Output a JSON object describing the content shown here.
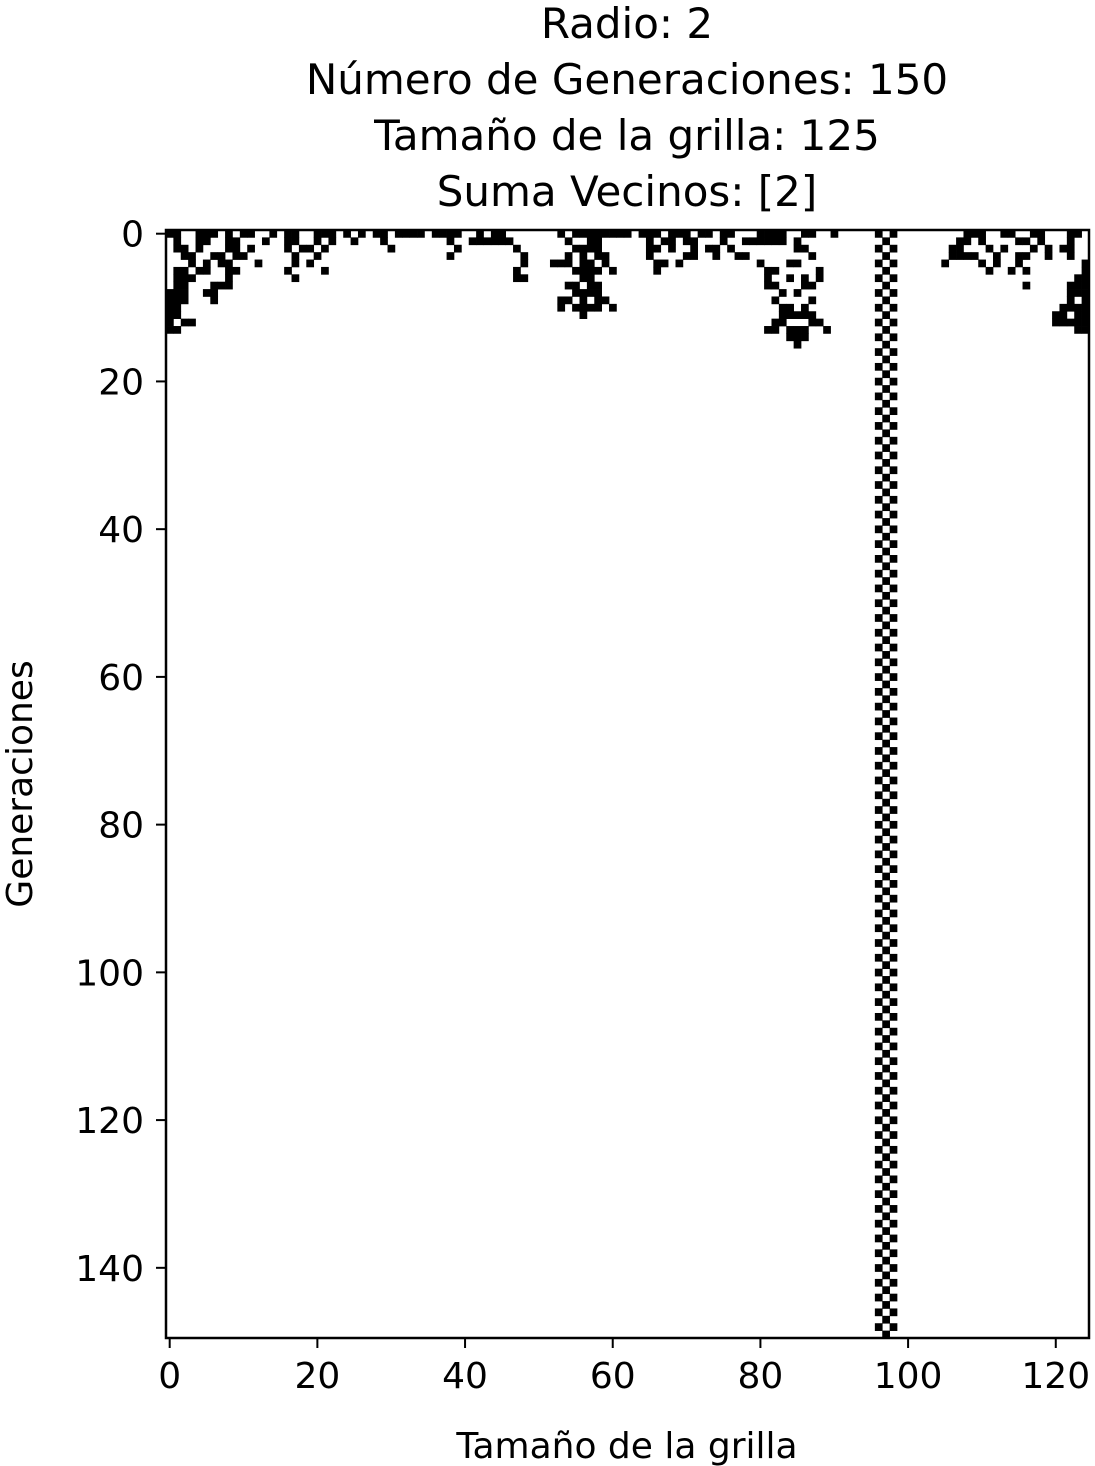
{
  "chart_data": {
    "type": "heatmap",
    "title_lines": [
      "Radio: 2",
      "Número de Generaciones: 150",
      "Tamaño de la grilla: 125",
      "Suma Vecinos: [2]"
    ],
    "xlabel": "Tamaño de la grilla",
    "ylabel": "Generaciones",
    "xlim": [
      -0.5,
      124.5
    ],
    "ylim": [
      149.5,
      -0.5
    ],
    "xticks": [
      0,
      20,
      40,
      60,
      80,
      100,
      120
    ],
    "yticks": [
      0,
      20,
      40,
      60,
      80,
      100,
      120,
      140
    ],
    "colormap": "binary",
    "colors": {
      "alive": "#000000",
      "dead": "#ffffff"
    },
    "grid": false,
    "grid_size": 125,
    "generations": 150,
    "notes_visible": "Top rows show transient chaotic pattern dying out by ~generation 15; a persistent checkerboard column band spans x≈96–98 for all generations.",
    "active_cells": [
      [
        0,
        0
      ],
      [
        0,
        1
      ],
      [
        0,
        4
      ],
      [
        0,
        5
      ],
      [
        0,
        6
      ],
      [
        0,
        8
      ],
      [
        0,
        10
      ],
      [
        0,
        11
      ],
      [
        0,
        14
      ],
      [
        0,
        16
      ],
      [
        0,
        17
      ],
      [
        0,
        20
      ],
      [
        0,
        21
      ],
      [
        0,
        22
      ],
      [
        0,
        24
      ],
      [
        0,
        26
      ],
      [
        0,
        28
      ],
      [
        0,
        29
      ],
      [
        0,
        31
      ],
      [
        0,
        32
      ],
      [
        0,
        33
      ],
      [
        0,
        34
      ],
      [
        0,
        36
      ],
      [
        0,
        37
      ],
      [
        0,
        38
      ],
      [
        0,
        39
      ],
      [
        0,
        42
      ],
      [
        0,
        44
      ],
      [
        0,
        45
      ],
      [
        0,
        53
      ],
      [
        0,
        55
      ],
      [
        0,
        56
      ],
      [
        0,
        57
      ],
      [
        0,
        58
      ],
      [
        0,
        59
      ],
      [
        0,
        60
      ],
      [
        0,
        61
      ],
      [
        0,
        62
      ],
      [
        0,
        64
      ],
      [
        0,
        65
      ],
      [
        0,
        66
      ],
      [
        0,
        68
      ],
      [
        0,
        69
      ],
      [
        0,
        70
      ],
      [
        0,
        72
      ],
      [
        0,
        73
      ],
      [
        0,
        75
      ],
      [
        0,
        76
      ],
      [
        0,
        80
      ],
      [
        0,
        81
      ],
      [
        0,
        82
      ],
      [
        0,
        83
      ],
      [
        0,
        86
      ],
      [
        0,
        87
      ],
      [
        0,
        90
      ],
      [
        0,
        96
      ],
      [
        0,
        98
      ],
      [
        0,
        108
      ],
      [
        0,
        109
      ],
      [
        0,
        110
      ],
      [
        0,
        113
      ],
      [
        0,
        114
      ],
      [
        0,
        117
      ],
      [
        0,
        118
      ],
      [
        0,
        122
      ],
      [
        0,
        123
      ],
      [
        1,
        1
      ],
      [
        1,
        4
      ],
      [
        1,
        5
      ],
      [
        1,
        8
      ],
      [
        1,
        9
      ],
      [
        1,
        13
      ],
      [
        1,
        16
      ],
      [
        1,
        17
      ],
      [
        1,
        20
      ],
      [
        1,
        22
      ],
      [
        1,
        25
      ],
      [
        1,
        29
      ],
      [
        1,
        38
      ],
      [
        1,
        41
      ],
      [
        1,
        42
      ],
      [
        1,
        43
      ],
      [
        1,
        44
      ],
      [
        1,
        45
      ],
      [
        1,
        46
      ],
      [
        1,
        54
      ],
      [
        1,
        57
      ],
      [
        1,
        58
      ],
      [
        1,
        65
      ],
      [
        1,
        67
      ],
      [
        1,
        68
      ],
      [
        1,
        70
      ],
      [
        1,
        71
      ],
      [
        1,
        75
      ],
      [
        1,
        78
      ],
      [
        1,
        79
      ],
      [
        1,
        80
      ],
      [
        1,
        81
      ],
      [
        1,
        82
      ],
      [
        1,
        83
      ],
      [
        1,
        85
      ],
      [
        1,
        97
      ],
      [
        1,
        107
      ],
      [
        1,
        108
      ],
      [
        1,
        110
      ],
      [
        1,
        115
      ],
      [
        1,
        116
      ],
      [
        1,
        118
      ],
      [
        1,
        122
      ],
      [
        2,
        1
      ],
      [
        2,
        2
      ],
      [
        2,
        4
      ],
      [
        2,
        8
      ],
      [
        2,
        9
      ],
      [
        2,
        11
      ],
      [
        2,
        16
      ],
      [
        2,
        18
      ],
      [
        2,
        19
      ],
      [
        2,
        21
      ],
      [
        2,
        30
      ],
      [
        2,
        39
      ],
      [
        2,
        47
      ],
      [
        2,
        55
      ],
      [
        2,
        56
      ],
      [
        2,
        57
      ],
      [
        2,
        58
      ],
      [
        2,
        65
      ],
      [
        2,
        66
      ],
      [
        2,
        68
      ],
      [
        2,
        71
      ],
      [
        2,
        73
      ],
      [
        2,
        74
      ],
      [
        2,
        76
      ],
      [
        2,
        85
      ],
      [
        2,
        86
      ],
      [
        2,
        96
      ],
      [
        2,
        98
      ],
      [
        2,
        106
      ],
      [
        2,
        107
      ],
      [
        2,
        111
      ],
      [
        2,
        113
      ],
      [
        2,
        117
      ],
      [
        2,
        119
      ],
      [
        2,
        121
      ],
      [
        2,
        122
      ],
      [
        3,
        2
      ],
      [
        3,
        3
      ],
      [
        3,
        6
      ],
      [
        3,
        7
      ],
      [
        3,
        9
      ],
      [
        3,
        10
      ],
      [
        3,
        17
      ],
      [
        3,
        20
      ],
      [
        3,
        38
      ],
      [
        3,
        48
      ],
      [
        3,
        54
      ],
      [
        3,
        56
      ],
      [
        3,
        58
      ],
      [
        3,
        59
      ],
      [
        3,
        65
      ],
      [
        3,
        70
      ],
      [
        3,
        71
      ],
      [
        3,
        74
      ],
      [
        3,
        77
      ],
      [
        3,
        78
      ],
      [
        3,
        87
      ],
      [
        3,
        97
      ],
      [
        3,
        106
      ],
      [
        3,
        107
      ],
      [
        3,
        108
      ],
      [
        3,
        109
      ],
      [
        3,
        112
      ],
      [
        3,
        115
      ],
      [
        3,
        116
      ],
      [
        3,
        119
      ],
      [
        3,
        122
      ],
      [
        4,
        3
      ],
      [
        4,
        5
      ],
      [
        4,
        7
      ],
      [
        4,
        8
      ],
      [
        4,
        12
      ],
      [
        4,
        17
      ],
      [
        4,
        19
      ],
      [
        4,
        48
      ],
      [
        4,
        52
      ],
      [
        4,
        53
      ],
      [
        4,
        54
      ],
      [
        4,
        56
      ],
      [
        4,
        57
      ],
      [
        4,
        59
      ],
      [
        4,
        66
      ],
      [
        4,
        67
      ],
      [
        4,
        69
      ],
      [
        4,
        80
      ],
      [
        4,
        84
      ],
      [
        4,
        85
      ],
      [
        4,
        96
      ],
      [
        4,
        98
      ],
      [
        4,
        105
      ],
      [
        4,
        110
      ],
      [
        4,
        112
      ],
      [
        4,
        115
      ],
      [
        4,
        124
      ],
      [
        5,
        1
      ],
      [
        5,
        2
      ],
      [
        5,
        4
      ],
      [
        5,
        5
      ],
      [
        5,
        8
      ],
      [
        5,
        9
      ],
      [
        5,
        16
      ],
      [
        5,
        21
      ],
      [
        5,
        47
      ],
      [
        5,
        55
      ],
      [
        5,
        56
      ],
      [
        5,
        57
      ],
      [
        5,
        58
      ],
      [
        5,
        60
      ],
      [
        5,
        66
      ],
      [
        5,
        81
      ],
      [
        5,
        82
      ],
      [
        5,
        88
      ],
      [
        5,
        97
      ],
      [
        5,
        111
      ],
      [
        5,
        114
      ],
      [
        5,
        116
      ],
      [
        5,
        124
      ],
      [
        6,
        1
      ],
      [
        6,
        2
      ],
      [
        6,
        3
      ],
      [
        6,
        8
      ],
      [
        6,
        17
      ],
      [
        6,
        47
      ],
      [
        6,
        48
      ],
      [
        6,
        56
      ],
      [
        6,
        57
      ],
      [
        6,
        81
      ],
      [
        6,
        84
      ],
      [
        6,
        86
      ],
      [
        6,
        88
      ],
      [
        6,
        96
      ],
      [
        6,
        98
      ],
      [
        6,
        123
      ],
      [
        6,
        124
      ],
      [
        7,
        1
      ],
      [
        7,
        2
      ],
      [
        7,
        6
      ],
      [
        7,
        7
      ],
      [
        7,
        8
      ],
      [
        7,
        54
      ],
      [
        7,
        55
      ],
      [
        7,
        57
      ],
      [
        7,
        58
      ],
      [
        7,
        81
      ],
      [
        7,
        82
      ],
      [
        7,
        86
      ],
      [
        7,
        87
      ],
      [
        7,
        97
      ],
      [
        7,
        116
      ],
      [
        7,
        122
      ],
      [
        7,
        123
      ],
      [
        7,
        124
      ],
      [
        8,
        0
      ],
      [
        8,
        1
      ],
      [
        8,
        2
      ],
      [
        8,
        5
      ],
      [
        8,
        6
      ],
      [
        8,
        55
      ],
      [
        8,
        56
      ],
      [
        8,
        57
      ],
      [
        8,
        58
      ],
      [
        8,
        83
      ],
      [
        8,
        85
      ],
      [
        8,
        96
      ],
      [
        8,
        98
      ],
      [
        8,
        122
      ],
      [
        8,
        123
      ],
      [
        8,
        124
      ],
      [
        9,
        0
      ],
      [
        9,
        1
      ],
      [
        9,
        2
      ],
      [
        9,
        6
      ],
      [
        9,
        53
      ],
      [
        9,
        54
      ],
      [
        9,
        56
      ],
      [
        9,
        58
      ],
      [
        9,
        59
      ],
      [
        9,
        82
      ],
      [
        9,
        87
      ],
      [
        9,
        97
      ],
      [
        9,
        122
      ],
      [
        9,
        124
      ],
      [
        10,
        0
      ],
      [
        10,
        1
      ],
      [
        10,
        53
      ],
      [
        10,
        55
      ],
      [
        10,
        56
      ],
      [
        10,
        57
      ],
      [
        10,
        58
      ],
      [
        10,
        60
      ],
      [
        10,
        83
      ],
      [
        10,
        84
      ],
      [
        10,
        86
      ],
      [
        10,
        96
      ],
      [
        10,
        98
      ],
      [
        10,
        121
      ],
      [
        10,
        122
      ],
      [
        10,
        123
      ],
      [
        10,
        124
      ],
      [
        11,
        0
      ],
      [
        11,
        1
      ],
      [
        11,
        56
      ],
      [
        11,
        83
      ],
      [
        11,
        84
      ],
      [
        11,
        85
      ],
      [
        11,
        86
      ],
      [
        11,
        87
      ],
      [
        11,
        97
      ],
      [
        11,
        120
      ],
      [
        11,
        121
      ],
      [
        11,
        123
      ],
      [
        11,
        124
      ],
      [
        12,
        0
      ],
      [
        12,
        2
      ],
      [
        12,
        3
      ],
      [
        12,
        82
      ],
      [
        12,
        83
      ],
      [
        12,
        87
      ],
      [
        12,
        88
      ],
      [
        12,
        96
      ],
      [
        12,
        98
      ],
      [
        12,
        120
      ],
      [
        12,
        121
      ],
      [
        12,
        122
      ],
      [
        12,
        123
      ],
      [
        12,
        124
      ],
      [
        13,
        0
      ],
      [
        13,
        1
      ],
      [
        13,
        81
      ],
      [
        13,
        82
      ],
      [
        13,
        84
      ],
      [
        13,
        85
      ],
      [
        13,
        86
      ],
      [
        13,
        89
      ],
      [
        13,
        97
      ],
      [
        13,
        123
      ],
      [
        13,
        124
      ],
      [
        14,
        84
      ],
      [
        14,
        85
      ],
      [
        14,
        86
      ],
      [
        14,
        96
      ],
      [
        14,
        98
      ],
      [
        15,
        85
      ],
      [
        15,
        97
      ]
    ],
    "stable_band": {
      "x_start": 96,
      "x_end": 98,
      "from_generation": 0,
      "to_generation": 149,
      "pattern": "checkerboard"
    }
  }
}
